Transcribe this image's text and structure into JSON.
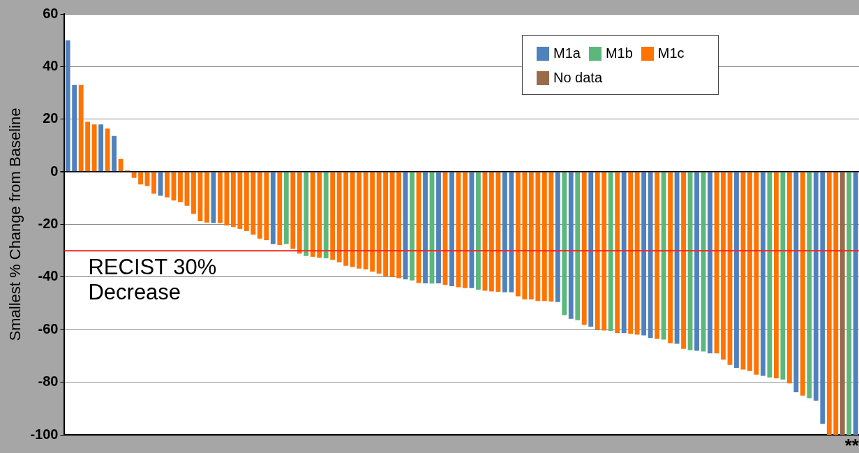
{
  "chart_data": {
    "type": "bar",
    "ylabel": "Smallest % Change from Baseline",
    "categories": [
      null,
      null,
      null,
      null,
      null,
      null,
      null,
      null,
      null,
      null,
      null,
      null,
      null,
      null,
      null,
      null,
      null,
      null,
      null,
      null,
      null,
      null,
      null,
      null,
      null,
      null,
      null,
      null,
      null,
      null,
      null,
      null,
      null,
      null,
      null,
      null,
      null,
      null,
      null,
      null,
      null,
      null,
      null,
      null,
      null,
      null,
      null,
      null,
      null,
      null,
      null,
      null,
      null,
      null,
      null,
      null,
      null,
      null,
      null,
      null,
      null,
      null,
      null,
      null,
      null,
      null,
      null,
      null,
      null,
      null,
      null,
      null,
      null,
      null,
      null,
      null,
      null,
      null,
      null,
      null,
      null,
      null,
      null,
      null,
      null,
      null,
      null,
      null,
      null,
      null,
      null,
      null,
      null,
      null,
      null,
      null,
      null,
      null,
      null,
      null,
      null,
      null,
      null,
      null,
      null,
      null,
      null,
      null,
      null,
      null,
      null,
      null,
      null,
      null,
      null,
      null,
      null,
      null,
      null,
      null
    ],
    "series": [
      {
        "name": "M1a",
        "color": "#4f81bd",
        "values": [
          50,
          33,
          null,
          null,
          null,
          18,
          null,
          13.6,
          null,
          null,
          null,
          null,
          null,
          null,
          -9.1,
          null,
          null,
          null,
          null,
          null,
          null,
          null,
          -19.5,
          null,
          null,
          null,
          null,
          null,
          null,
          null,
          null,
          -27.5,
          null,
          null,
          null,
          null,
          null,
          null,
          null,
          null,
          null,
          null,
          null,
          null,
          null,
          null,
          null,
          null,
          null,
          null,
          null,
          -40.9,
          null,
          null,
          -42.4,
          null,
          -42.4,
          null,
          -43.5,
          null,
          null,
          -44.2,
          null,
          null,
          null,
          null,
          -45.8,
          -45.8,
          null,
          null,
          null,
          null,
          null,
          null,
          -49.5,
          null,
          -55.9,
          null,
          null,
          -58.9,
          null,
          null,
          null,
          null,
          -61.3,
          null,
          null,
          -62.2,
          -63.2,
          null,
          null,
          null,
          -65.4,
          null,
          null,
          -68,
          null,
          -69,
          null,
          null,
          null,
          -74.5,
          null,
          null,
          null,
          -77.6,
          null,
          null,
          null,
          null,
          -83.8,
          null,
          null,
          -87,
          -95.8,
          null,
          null,
          null,
          null,
          -100
        ]
      },
      {
        "name": "M1b",
        "color": "#5cb87a",
        "values": [
          null,
          null,
          null,
          null,
          null,
          null,
          null,
          null,
          null,
          null,
          null,
          null,
          null,
          null,
          null,
          null,
          null,
          null,
          null,
          null,
          null,
          null,
          null,
          null,
          null,
          null,
          null,
          null,
          null,
          null,
          null,
          null,
          null,
          -27.5,
          null,
          null,
          -32,
          null,
          null,
          -32.9,
          null,
          null,
          null,
          null,
          null,
          null,
          null,
          null,
          null,
          null,
          null,
          null,
          -41.3,
          null,
          null,
          -42.5,
          null,
          null,
          null,
          null,
          null,
          null,
          -44.8,
          null,
          null,
          null,
          null,
          null,
          null,
          null,
          null,
          null,
          null,
          null,
          null,
          -54.5,
          null,
          -56.4,
          null,
          null,
          null,
          null,
          -60.5,
          null,
          null,
          null,
          null,
          null,
          null,
          null,
          -63.8,
          null,
          null,
          null,
          -67.8,
          null,
          -68.3,
          null,
          null,
          null,
          null,
          null,
          null,
          null,
          null,
          null,
          -78.2,
          null,
          -79,
          null,
          null,
          null,
          -86.1,
          null,
          null,
          null,
          null,
          null,
          -100,
          null
        ]
      },
      {
        "name": "M1c",
        "color": "#ff7300",
        "values": [
          null,
          null,
          33,
          19,
          18,
          null,
          16.4,
          null,
          4.9,
          0.5,
          -2.3,
          -4.8,
          -5.4,
          -8.3,
          null,
          -9.7,
          -10.9,
          -11.5,
          -12.9,
          -16,
          -18.8,
          -19.3,
          null,
          -19.5,
          -20.4,
          -21,
          -21.7,
          -22.5,
          -23.9,
          -25.4,
          -26,
          null,
          -27.8,
          null,
          -29.3,
          -31.1,
          null,
          -32.3,
          -32.7,
          null,
          -33.5,
          -34.4,
          -35.7,
          -36.2,
          -36.8,
          -37.1,
          -38,
          -38.7,
          -39.7,
          -39.9,
          -40.4,
          null,
          null,
          -42.3,
          null,
          null,
          null,
          -43,
          null,
          -43.9,
          -44.2,
          null,
          null,
          -45.2,
          -45.5,
          -45.6,
          null,
          null,
          -47.3,
          -48.5,
          -48.5,
          -49.1,
          -49.1,
          -49.3,
          null,
          null,
          null,
          null,
          -58.2,
          null,
          -60,
          -60.3,
          null,
          -61.3,
          null,
          -61.6,
          -61.9,
          null,
          null,
          -63.5,
          null,
          -65.2,
          null,
          -67.3,
          null,
          null,
          null,
          null,
          -69,
          -71.4,
          -73.4,
          null,
          -75.2,
          -75.7,
          -77.1,
          null,
          null,
          -78.5,
          null,
          -80.4,
          null,
          -85.1,
          null,
          null,
          null,
          -100,
          -100,
          null,
          null,
          null
        ]
      },
      {
        "name": "No data",
        "color": "#9a6b4b",
        "values": [
          null,
          null,
          null,
          null,
          null,
          null,
          null,
          null,
          null,
          null,
          null,
          null,
          null,
          null,
          null,
          null,
          null,
          null,
          null,
          null,
          null,
          null,
          null,
          null,
          null,
          null,
          null,
          null,
          null,
          null,
          null,
          null,
          null,
          null,
          null,
          null,
          null,
          null,
          null,
          null,
          null,
          null,
          null,
          null,
          null,
          null,
          null,
          null,
          null,
          null,
          null,
          null,
          null,
          null,
          null,
          null,
          null,
          null,
          null,
          null,
          null,
          null,
          null,
          null,
          null,
          null,
          null,
          null,
          null,
          null,
          null,
          null,
          null,
          null,
          null,
          null,
          null,
          null,
          null,
          null,
          null,
          null,
          null,
          null,
          null,
          null,
          null,
          null,
          null,
          null,
          null,
          null,
          null,
          null,
          null,
          null,
          null,
          null,
          null,
          null,
          null,
          null,
          null,
          null,
          null,
          null,
          null,
          null,
          null,
          null,
          null,
          null,
          null,
          null,
          null,
          null,
          null,
          -100,
          null,
          null
        ]
      }
    ],
    "ylim": [
      -100,
      60
    ],
    "yticks": [
      -100,
      -80,
      -60,
      -40,
      -20,
      0,
      20,
      40,
      60
    ],
    "grid": "y",
    "legend": "top right",
    "ref_lines": [
      {
        "axis": "y",
        "value": -30,
        "label": "RECIST 30% Decrease",
        "color": "#ff2020"
      }
    ],
    "annotations": [
      "**"
    ]
  }
}
